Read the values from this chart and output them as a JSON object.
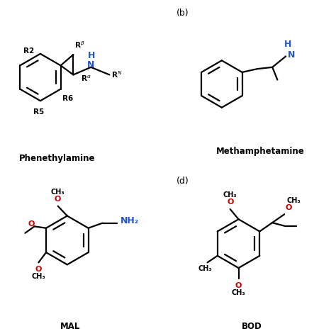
{
  "background": "#ffffff",
  "blue_color": "#2255cc",
  "red_color": "#cc0000",
  "black_color": "#000000",
  "name_a": "Phenethylamine",
  "name_b": "Methamphetamine",
  "name_c": "MAL",
  "name_d": "BOD",
  "label_b": "(b)",
  "label_d": "(d)"
}
